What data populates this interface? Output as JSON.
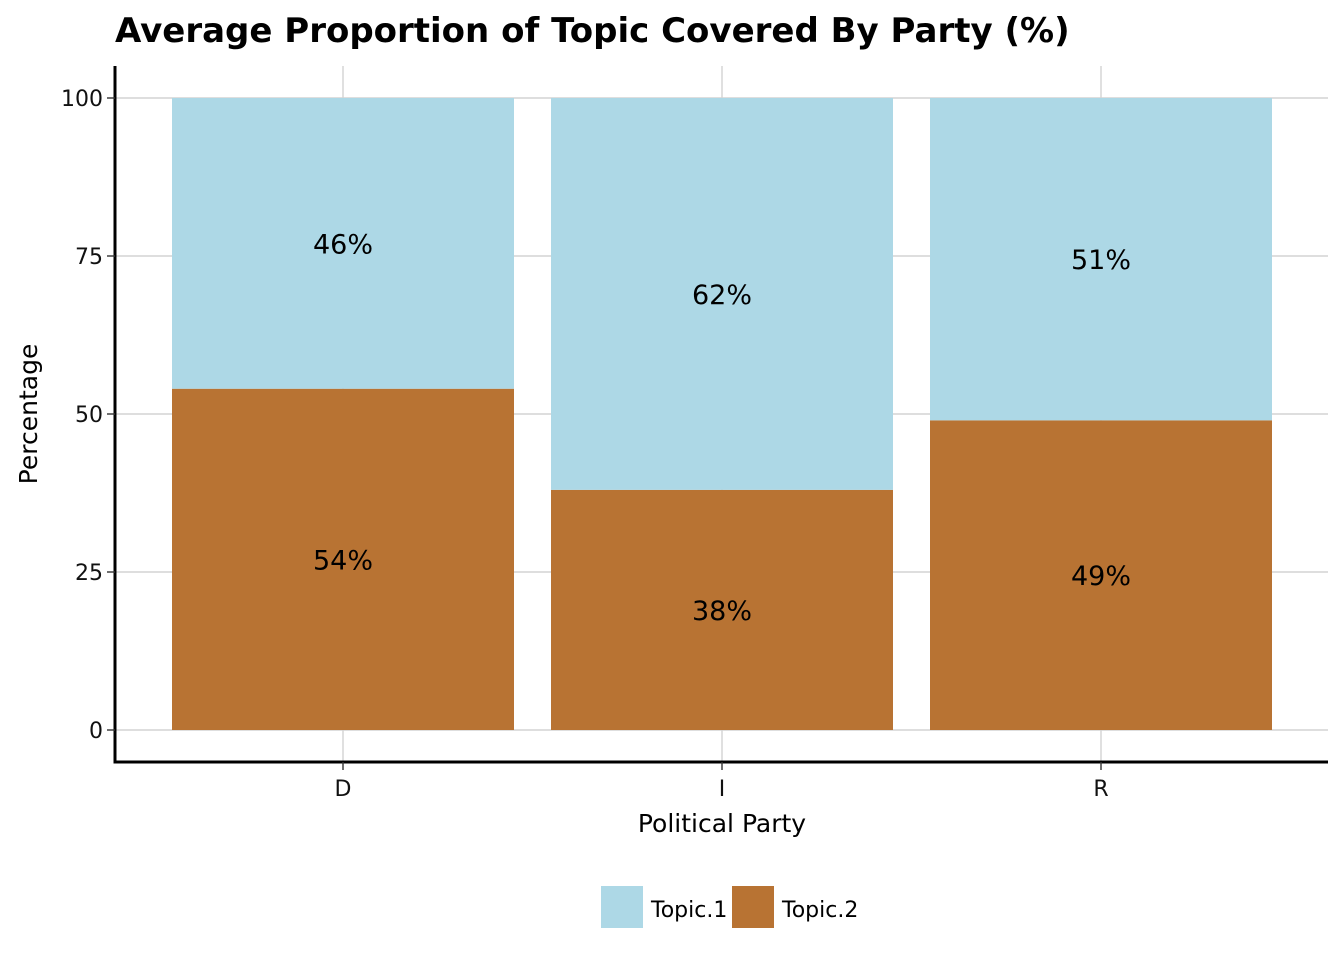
{
  "chart_data": {
    "type": "bar",
    "stacked": true,
    "title": "Average Proportion of Topic Covered By Party (%)",
    "xlabel": "Political Party",
    "ylabel": "Percentage",
    "ylim": [
      0,
      100
    ],
    "yticks": [
      0,
      25,
      50,
      75,
      100
    ],
    "categories": [
      "D",
      "I",
      "R"
    ],
    "series": [
      {
        "name": "Topic.2",
        "values": [
          54,
          38,
          49
        ],
        "labels": [
          "54%",
          "38%",
          "49%"
        ],
        "color": "#b87333"
      },
      {
        "name": "Topic.1",
        "values": [
          46,
          62,
          51
        ],
        "labels": [
          "46%",
          "62%",
          "51%"
        ],
        "color": "#add8e6"
      }
    ],
    "legend": {
      "placement": "bottom",
      "order": [
        "Topic.1",
        "Topic.2"
      ]
    },
    "grid": true
  }
}
